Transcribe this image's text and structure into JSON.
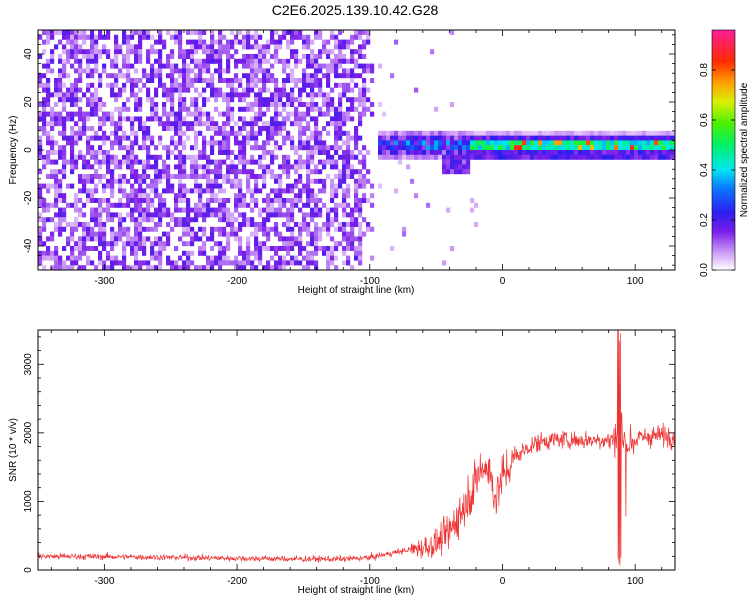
{
  "title": "C2E6.2025.139.10.42.G28",
  "chart_data": [
    {
      "type": "heatmap",
      "xlabel": "Height of straight line (km)",
      "ylabel": "Frequency (Hz)",
      "xlim": [
        -350,
        130
      ],
      "ylim": [
        -50,
        50
      ],
      "xticks": [
        "-300",
        "-200",
        "-100",
        "0",
        "100"
      ],
      "yticks": [
        "-40",
        "-20",
        "0",
        "20",
        "40"
      ],
      "colorbar": {
        "label": "Normalized spectral amplitude",
        "range": [
          0,
          0.96
        ],
        "ticks": [
          "0.0",
          "0.2",
          "0.4",
          "0.6",
          "0.8"
        ],
        "colormap": "rainbow (white-violet-blue-cyan-green-yellow-red-magenta)"
      },
      "regions": [
        {
          "x_range": [
            -350,
            -95
          ],
          "description": "broadband noise",
          "amplitude": 0.1
        },
        {
          "x_range": [
            -110,
            -25
          ],
          "description": "emerging carrier, spread",
          "freq_center": 2,
          "amplitude": 0.35
        },
        {
          "x_range": [
            -25,
            130
          ],
          "description": "narrow carrier",
          "freq_center": 1.5,
          "freq_halfwidth": 2.5,
          "amplitude": 0.45
        }
      ],
      "grid": false
    },
    {
      "type": "line",
      "xlabel": "Height of straight line (km)",
      "ylabel": "SNR (10 * v/v)",
      "xlim": [
        -350,
        130
      ],
      "ylim": [
        0,
        3500
      ],
      "xticks": [
        "-300",
        "-200",
        "-100",
        "0",
        "100"
      ],
      "yticks": [
        "0",
        "1000",
        "2000",
        "3000"
      ],
      "color": "#ee3333",
      "series": [
        {
          "x": [
            -350,
            -300,
            -250,
            -200,
            -150,
            -120,
            -100,
            -80,
            -60,
            -50,
            -40,
            -30,
            -20,
            -15,
            -10,
            -5,
            0,
            10,
            20,
            30,
            40,
            50,
            60,
            70,
            80,
            86,
            88,
            90,
            95,
            100,
            110,
            120,
            130
          ],
          "y": [
            200,
            195,
            185,
            170,
            160,
            160,
            180,
            260,
            330,
            380,
            550,
            900,
            1300,
            1500,
            1450,
            1050,
            1350,
            1650,
            1800,
            1880,
            1900,
            1900,
            1890,
            1900,
            1900,
            1900,
            3500,
            1950,
            1850,
            1900,
            1950,
            1960,
            1960
          ]
        }
      ],
      "grid": false
    }
  ]
}
